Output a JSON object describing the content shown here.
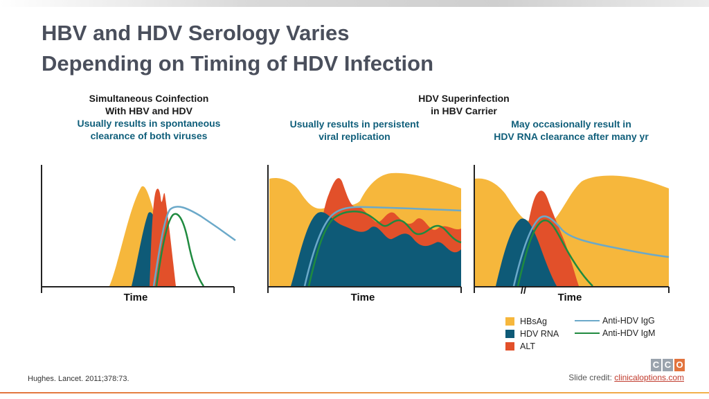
{
  "title": {
    "line1": "HBV and HDV Serology Varies",
    "line2": "Depending on Timing of HDV Infection"
  },
  "columns": {
    "left": {
      "heading1": "Simultaneous Coinfection",
      "heading2": "With HBV and HDV",
      "note1": "Usually results in spontaneous",
      "note2": "clearance of both viruses"
    },
    "right_group": {
      "heading1": "HDV Superinfection",
      "heading2": "in HBV Carrier",
      "middle_note1": "Usually results in persistent",
      "middle_note2": "viral replication",
      "right_note1": "May occasionally result in",
      "right_note2": "HDV RNA clearance after many yr"
    }
  },
  "axes": {
    "x_label_1": "Time",
    "x_label_2": "Time",
    "x_label_3": "Time",
    "break_mark": "//"
  },
  "colors": {
    "hbsag": "#f6b73c",
    "hdv_rna": "#0e5a77",
    "alt": "#e2502a",
    "anti_hdv_igg": "#6ba9c9",
    "anti_hdv_igm": "#1f8a3f"
  },
  "legend": {
    "hbsag": "HBsAg",
    "hdv_rna": "HDV RNA",
    "alt": "ALT",
    "anti_hdv_igg": "Anti-HDV IgG",
    "anti_hdv_igm": "Anti-HDV IgM"
  },
  "footer": {
    "reference": "Hughes. Lancet. 2011;378:73.",
    "credit_prefix": "Slide credit: ",
    "credit_link": "clinicaloptions.com"
  },
  "logo": {
    "letters": [
      "C",
      "C",
      "O"
    ],
    "colors": [
      "#9aa3ad",
      "#9aa3ad",
      "#e2743e"
    ]
  }
}
